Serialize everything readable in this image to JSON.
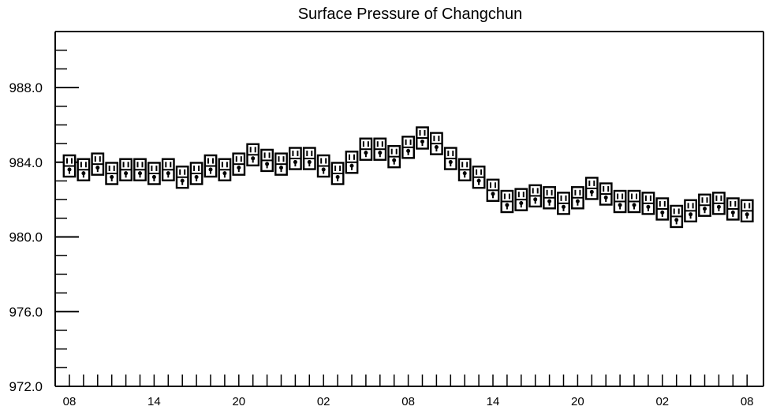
{
  "chart_data": {
    "type": "line",
    "title": "Surface Pressure of Changchun",
    "xlabel": "",
    "ylabel": "",
    "ylim": [
      972.0,
      991.0
    ],
    "y_ticks": [
      "972.0",
      "976.0",
      "980.0",
      "984.0",
      "988.0"
    ],
    "y_minor_step": 1.0,
    "x_start_hour": 8,
    "x_step_hours": 3,
    "x_tick_labels": [
      "08",
      "14",
      "20",
      "02",
      "08",
      "14",
      "20",
      "02",
      "08"
    ],
    "x_tick_positions": [
      0,
      6,
      12,
      18,
      24,
      30,
      36,
      42,
      48
    ],
    "series": [
      {
        "values": [
          983.8,
          983.6,
          983.9,
          983.4,
          983.6,
          983.6,
          983.4,
          983.6,
          983.2,
          983.4,
          983.8,
          983.6,
          983.9,
          984.4,
          984.1,
          983.9,
          984.2,
          984.2,
          983.8,
          983.4,
          984.0,
          984.7,
          984.7,
          984.3,
          984.8,
          985.3,
          985.0,
          984.2,
          983.6,
          983.2,
          982.5,
          981.9,
          982.0,
          982.2,
          982.1,
          981.8,
          982.1,
          982.6,
          982.3,
          981.9,
          981.9,
          981.8,
          981.5,
          981.1,
          981.4,
          981.7,
          981.8,
          981.5,
          981.4
        ]
      }
    ],
    "grid": false,
    "legend": "none"
  }
}
